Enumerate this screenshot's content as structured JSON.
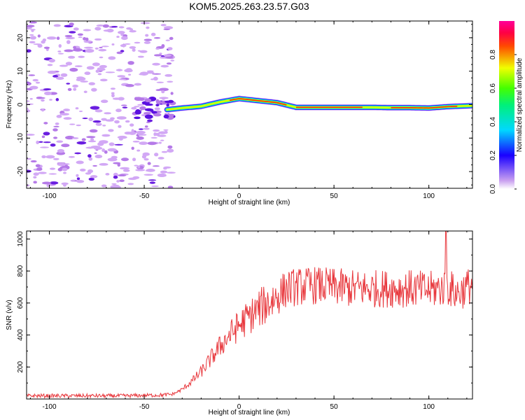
{
  "title": "KOM5.2025.263.23.57.G03",
  "chart_data": [
    {
      "type": "heatmap",
      "xlabel": "Height of straight line (km)",
      "ylabel": "Frequency (Hz)",
      "xlim": [
        -112,
        123
      ],
      "ylim": [
        -25,
        25
      ],
      "x_ticks": [
        -100,
        -50,
        0,
        50,
        100
      ],
      "y_ticks": [
        -20,
        -10,
        0,
        10,
        20
      ],
      "colorbar": {
        "label": "Normalized spectral amplitude",
        "range": [
          0,
          1
        ],
        "ticks": [
          "0.0",
          "0.2",
          "0.4",
          "0.6",
          "0.8"
        ]
      },
      "ridge": {
        "description": "Doppler track visible from about -38 km to 123 km",
        "x": [
          -38,
          -30,
          -20,
          -10,
          0,
          10,
          20,
          30,
          40,
          50,
          60,
          70,
          80,
          90,
          100,
          110,
          123
        ],
        "freq": [
          -1.5,
          -1.0,
          -0.5,
          0.8,
          1.8,
          1.2,
          0.6,
          -0.8,
          -0.8,
          -0.8,
          -0.8,
          -0.8,
          -0.9,
          -0.9,
          -1.0,
          -0.6,
          -0.3
        ]
      }
    },
    {
      "type": "line",
      "xlabel": "Height of straight line (km)",
      "ylabel": "SNR (v/v)",
      "xlim": [
        -112,
        123
      ],
      "ylim": [
        0,
        1050
      ],
      "x_ticks": [
        -100,
        -50,
        0,
        50,
        100
      ],
      "y_ticks": [
        200,
        400,
        600,
        800,
        1000
      ],
      "color": "#e8383d",
      "trend": {
        "x": [
          -112,
          -60,
          -40,
          -35,
          -30,
          -25,
          -20,
          -15,
          -10,
          -5,
          0,
          5,
          10,
          15,
          20,
          25,
          30,
          40,
          50,
          60,
          70,
          80,
          90,
          100,
          105,
          110,
          115,
          123
        ],
        "y": [
          20,
          20,
          25,
          30,
          60,
          110,
          170,
          250,
          330,
          400,
          460,
          510,
          560,
          600,
          640,
          690,
          700,
          710,
          700,
          690,
          690,
          690,
          690,
          680,
          690,
          700,
          660,
          720
        ]
      },
      "peak": {
        "x": 109,
        "y": 1050
      }
    }
  ]
}
